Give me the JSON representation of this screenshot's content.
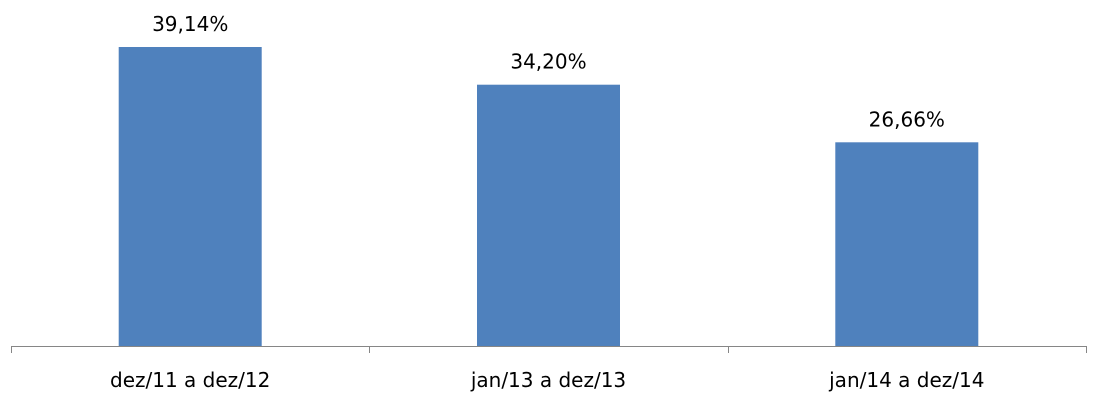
{
  "chart_data": {
    "type": "bar",
    "categories": [
      "dez/11 a dez/12",
      "jan/13 a dez/13",
      "jan/14 a dez/14"
    ],
    "values": [
      39.14,
      34.2,
      26.66
    ],
    "data_labels": [
      "39,14%",
      "34,20%",
      "26,66%"
    ],
    "unit": "%",
    "ylim": [
      0,
      40
    ],
    "grid": false,
    "legend": "none",
    "bar_color": "#4F81BD",
    "axis_color": "#868686"
  }
}
